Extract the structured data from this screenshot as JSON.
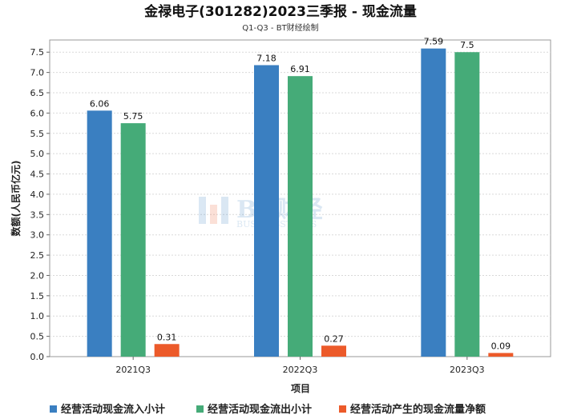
{
  "chart_data": {
    "type": "bar",
    "title": "金禄电子(301282)2023三季报 - 现金流量",
    "subtitle": "Q1-Q3 - BT财经绘制",
    "xlabel": "项目",
    "ylabel": "数额(人民币亿元)",
    "ylim": [
      0,
      7.8
    ],
    "yticks": [
      0.0,
      0.5,
      1.0,
      1.5,
      2.0,
      2.5,
      3.0,
      3.5,
      4.0,
      4.5,
      5.0,
      5.5,
      6.0,
      6.5,
      7.0,
      7.5
    ],
    "ytick_labels": [
      "0.0",
      "0.5",
      "1.0",
      "1.5",
      "2.0",
      "2.5",
      "3.0",
      "3.5",
      "4.0",
      "4.5",
      "5.0",
      "5.5",
      "6.0",
      "6.5",
      "7.0",
      "7.5"
    ],
    "grid": true,
    "legend_position": "bottom",
    "categories": [
      "2021Q3",
      "2022Q3",
      "2023Q3"
    ],
    "series": [
      {
        "name": "经营活动现金流入小计",
        "color": "#3a7fc1",
        "values": [
          6.06,
          7.18,
          7.59
        ],
        "labels": [
          "6.06",
          "7.18",
          "7.59"
        ]
      },
      {
        "name": "经营活动现金流出小计",
        "color": "#45ab78",
        "values": [
          5.75,
          6.91,
          7.5
        ],
        "labels": [
          "5.75",
          "6.91",
          "7.5"
        ]
      },
      {
        "name": "经营活动产生的现金流量净额",
        "color": "#ec5a2a",
        "values": [
          0.31,
          0.27,
          0.09
        ],
        "labels": [
          "0.31",
          "0.27",
          "0.09"
        ]
      }
    ],
    "watermark": {
      "logo_text": "BT财经",
      "logo_subtext": "BUSINESSTIMES"
    }
  }
}
